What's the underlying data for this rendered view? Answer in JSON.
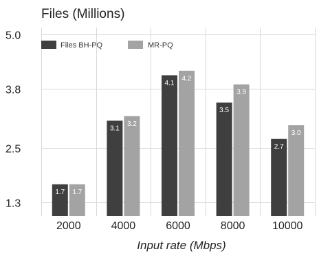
{
  "chart_data": {
    "type": "bar",
    "title": "Files (Millions)",
    "xlabel": "Input rate (Mbps)",
    "ylabel": "",
    "categories": [
      "2000",
      "4000",
      "6000",
      "8000",
      "10000"
    ],
    "series": [
      {
        "name": "Files BH-PQ",
        "values": [
          1.7,
          3.1,
          4.1,
          3.5,
          2.7
        ],
        "labels": [
          "1.7",
          "3.1",
          "4.1",
          "3.5",
          "2.7"
        ],
        "color": "#3f3f3f"
      },
      {
        "name": "MR-PQ",
        "values": [
          1.7,
          3.2,
          4.2,
          3.9,
          3.0
        ],
        "labels": [
          "1.7",
          "3.2",
          "4.2",
          "3.9",
          "3.0"
        ],
        "color": "#a3a3a3"
      }
    ],
    "yticks": [
      1.3,
      2.5,
      3.8,
      5.0
    ],
    "ytick_labels": [
      "1.3",
      "2.5",
      "3.8",
      "5.0"
    ],
    "ylim": [
      1.0,
      5.0
    ],
    "grid": true,
    "legend_position": "top-left"
  }
}
